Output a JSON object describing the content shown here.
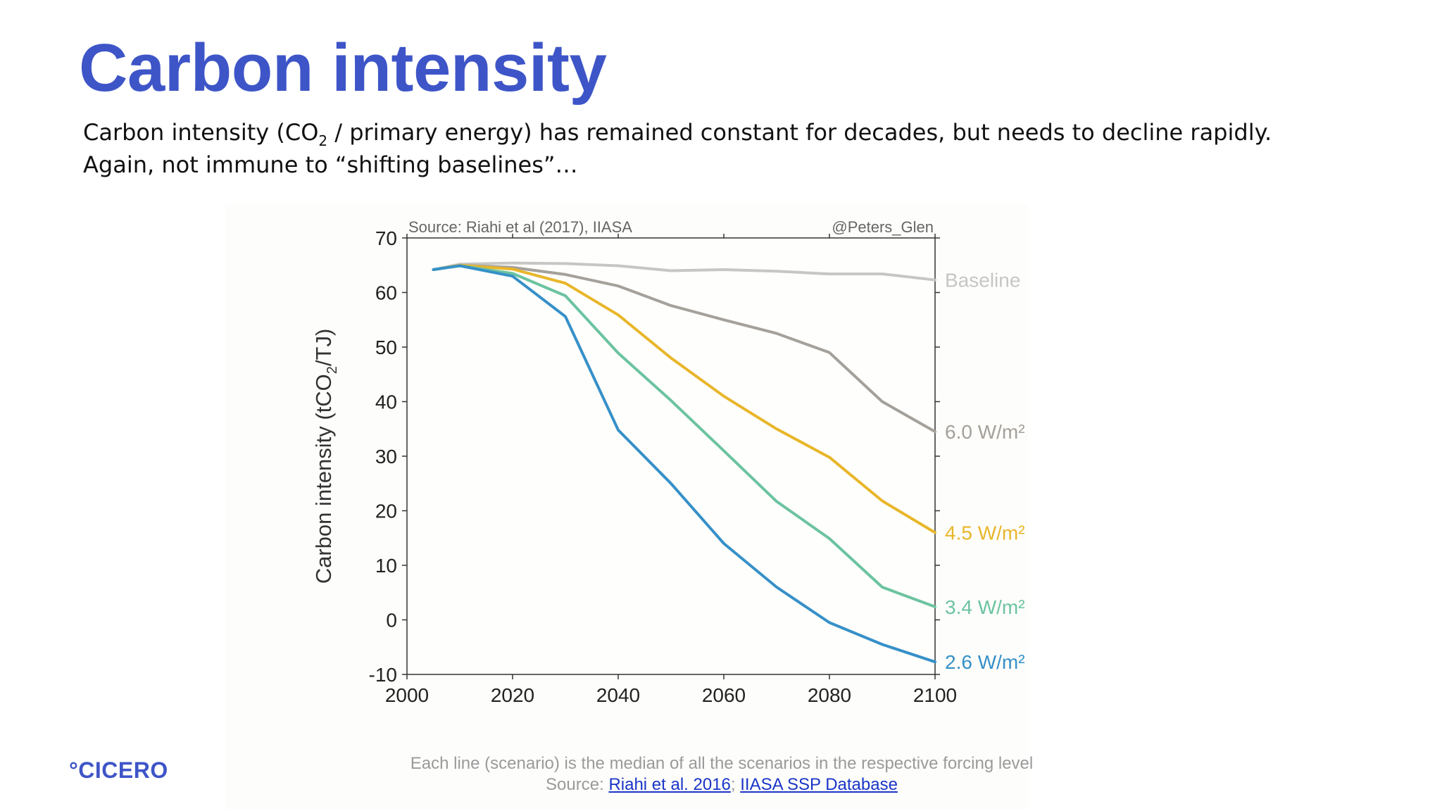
{
  "slide": {
    "title": "Carbon intensity",
    "subtitle_line1_pre": "Carbon intensity (CO",
    "subtitle_line1_sub": "2",
    "subtitle_line1_post": " / primary energy) has remained constant for decades, but needs to decline rapidly.",
    "subtitle_line2": "Again, not immune to “shifting baselines”…",
    "logo": "°CICERO",
    "footnote_line1": "Each line (scenario) is the median of all the scenarios in the respective forcing level",
    "footnote_source_label": "Source: ",
    "footnote_link1": "Riahi et al. 2016",
    "footnote_separator": "; ",
    "footnote_link2": "IIASA SSP Database"
  },
  "colors": {
    "title": "#3e55c8",
    "link": "#1a35c8",
    "footnote": "#9a9a9a"
  },
  "chart_data": {
    "type": "line",
    "source_note": "Source: Riahi et al (2017), IIASA",
    "credit": "@Peters_Glen",
    "ylabel_pre": "Carbon intensity (tCO",
    "ylabel_sub": "2",
    "ylabel_post": "/TJ)",
    "xlabel": "",
    "xlim": [
      2000,
      2100
    ],
    "ylim": [
      -10,
      70
    ],
    "xticks": [
      2000,
      2020,
      2040,
      2060,
      2080,
      2100
    ],
    "yticks": [
      -10,
      0,
      10,
      20,
      30,
      40,
      50,
      60,
      70
    ],
    "grid": false,
    "x": [
      2005,
      2010,
      2020,
      2030,
      2040,
      2050,
      2060,
      2070,
      2080,
      2090,
      2100
    ],
    "series": [
      {
        "name": "Baseline",
        "color": "#c6c6c6",
        "values": [
          64.2,
          65.2,
          65.4,
          65.3,
          64.9,
          64.0,
          64.2,
          63.9,
          63.4,
          63.4,
          62.3
        ]
      },
      {
        "name": "6.0 W/m²",
        "color": "#a4a09a",
        "values": [
          64.2,
          65.0,
          64.6,
          63.3,
          61.2,
          57.6,
          55.0,
          52.5,
          49.0,
          40.0,
          34.5
        ]
      },
      {
        "name": "4.5 W/m²",
        "color": "#e8b62a",
        "values": [
          64.2,
          65.0,
          64.3,
          61.7,
          55.9,
          48.0,
          41.0,
          35.0,
          29.8,
          21.8,
          16.0
        ]
      },
      {
        "name": "3.4 W/m²",
        "color": "#6cc3a0",
        "values": [
          64.2,
          64.9,
          63.5,
          59.4,
          48.9,
          40.2,
          31.0,
          21.7,
          14.9,
          6.0,
          2.4
        ]
      },
      {
        "name": "2.6 W/m²",
        "color": "#3690c8",
        "values": [
          64.2,
          64.9,
          63.0,
          55.6,
          34.8,
          25.0,
          14.0,
          6.0,
          -0.5,
          -4.5,
          -7.7
        ]
      }
    ],
    "legend": "inline labels at right end of lines"
  }
}
